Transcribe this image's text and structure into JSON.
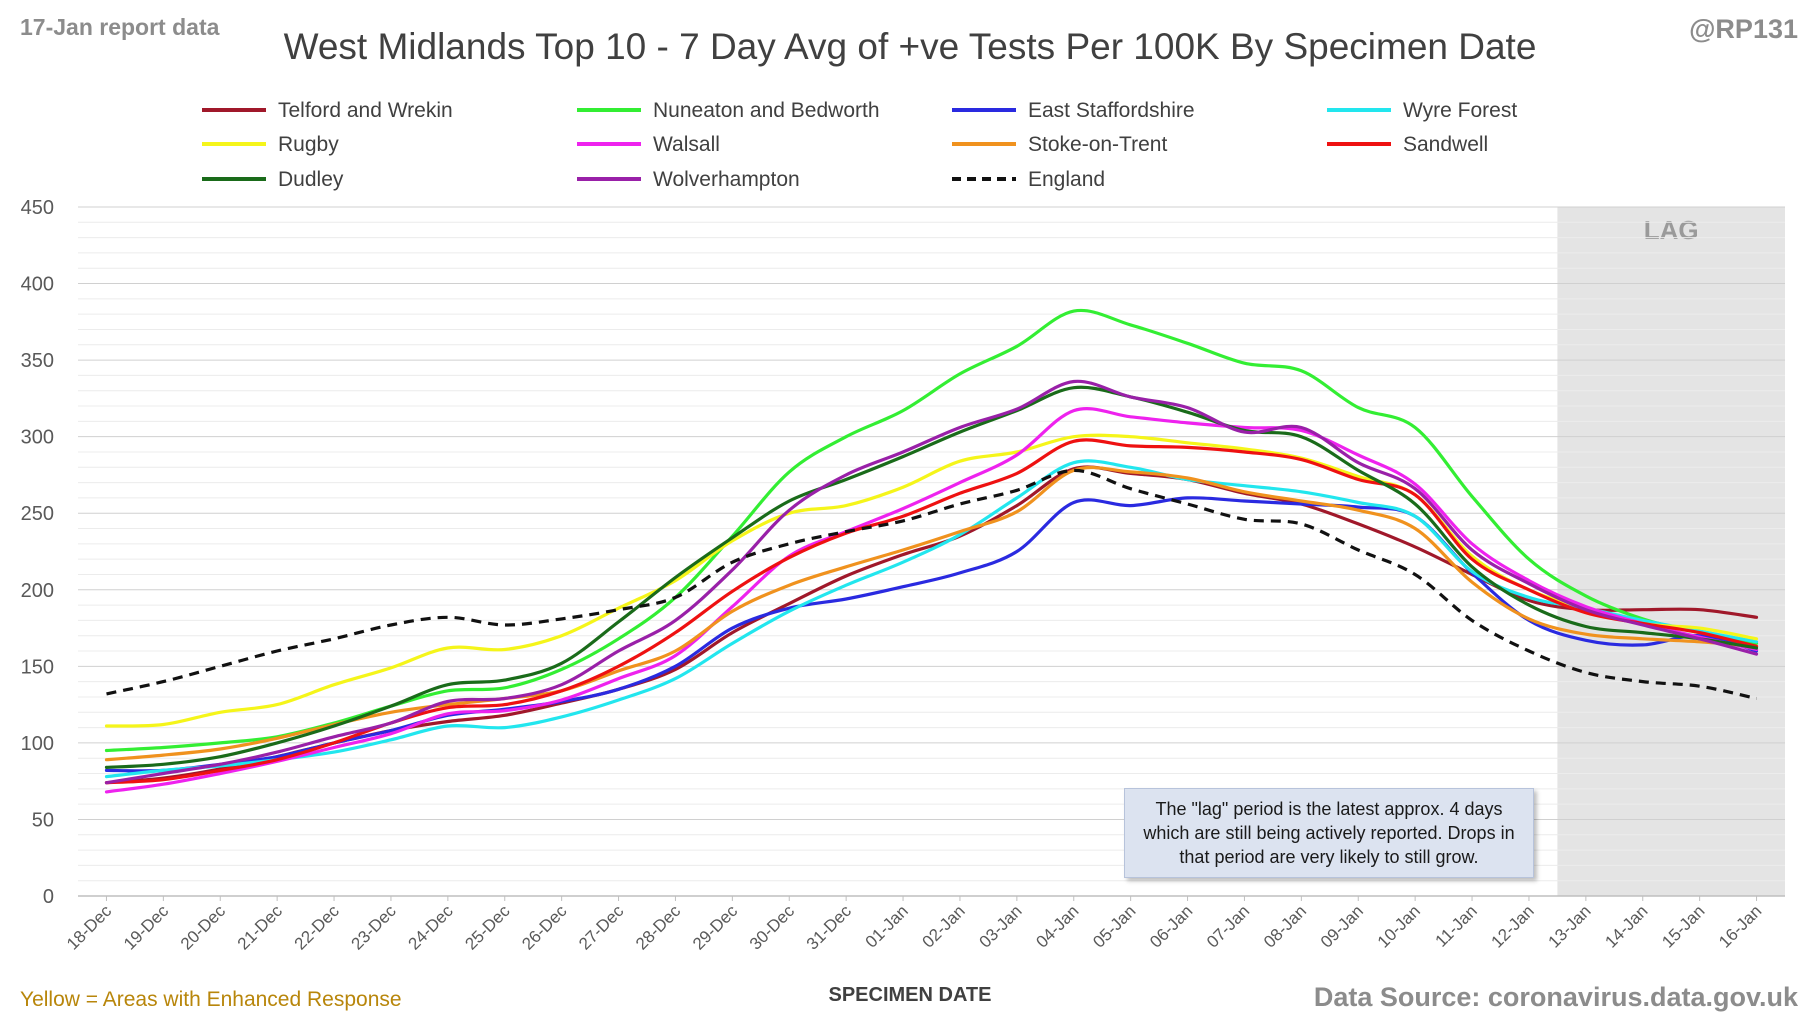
{
  "header": {
    "report_label": "17-Jan report data",
    "handle": "@RP131",
    "title": "West Midlands Top 10 - 7 Day Avg of +ve Tests Per 100K By Specimen Date"
  },
  "footer": {
    "note_left": "Yellow = Areas with Enhanced Response",
    "source": "Data Source: coronavirus.data.gov.uk"
  },
  "annotation": {
    "lag_label": "LAG",
    "lag_note": "The \"lag\" period is the latest approx. 4 days which are still being actively reported. Drops in that period are very likely to still grow."
  },
  "chart_data": {
    "type": "line",
    "title": "West Midlands Top 10 - 7 Day Avg of +ve Tests Per 100K By Specimen Date",
    "xlabel": "SPECIMEN DATE",
    "ylabel": "",
    "ylim": [
      0,
      450
    ],
    "yticks": [
      0,
      50,
      100,
      150,
      200,
      250,
      300,
      350,
      400,
      450
    ],
    "grid": true,
    "legend_position": "top",
    "lag_period": [
      "13-Jan",
      "16-Jan"
    ],
    "categories": [
      "18-Dec",
      "19-Dec",
      "20-Dec",
      "21-Dec",
      "22-Dec",
      "23-Dec",
      "24-Dec",
      "25-Dec",
      "26-Dec",
      "27-Dec",
      "28-Dec",
      "29-Dec",
      "30-Dec",
      "31-Dec",
      "01-Jan",
      "02-Jan",
      "03-Jan",
      "04-Jan",
      "05-Jan",
      "06-Jan",
      "07-Jan",
      "08-Jan",
      "09-Jan",
      "10-Jan",
      "11-Jan",
      "12-Jan",
      "13-Jan",
      "14-Jan",
      "15-Jan",
      "16-Jan"
    ],
    "series": [
      {
        "name": "Telford and Wrekin",
        "color": "#a0182a",
        "dash": false,
        "values": [
          74,
          77,
          83,
          91,
          100,
          108,
          114,
          118,
          126,
          135,
          148,
          172,
          191,
          209,
          223,
          235,
          255,
          279,
          276,
          272,
          263,
          256,
          243,
          228,
          210,
          193,
          187,
          187,
          187,
          182
        ]
      },
      {
        "name": "Nuneaton and Bedworth",
        "color": "#33ee33",
        "dash": false,
        "values": [
          95,
          97,
          100,
          104,
          113,
          124,
          134,
          136,
          148,
          168,
          195,
          235,
          277,
          300,
          317,
          341,
          359,
          382,
          373,
          361,
          348,
          343,
          319,
          306,
          261,
          220,
          196,
          181,
          172,
          165
        ]
      },
      {
        "name": "East Staffordshire",
        "color": "#2a2ae0",
        "dash": false,
        "values": [
          82,
          82,
          86,
          91,
          100,
          108,
          118,
          122,
          127,
          135,
          150,
          175,
          188,
          194,
          202,
          211,
          225,
          257,
          255,
          260,
          258,
          256,
          254,
          248,
          211,
          180,
          167,
          164,
          170,
          160
        ]
      },
      {
        "name": "Wyre Forest",
        "color": "#22e6ee",
        "dash": false,
        "values": [
          78,
          82,
          85,
          89,
          94,
          102,
          111,
          110,
          117,
          128,
          142,
          165,
          186,
          203,
          218,
          236,
          260,
          283,
          280,
          272,
          268,
          264,
          257,
          248,
          212,
          195,
          188,
          180,
          173,
          166
        ]
      },
      {
        "name": "Rugby",
        "color": "#f5f51a",
        "dash": false,
        "values": [
          111,
          112,
          120,
          125,
          138,
          149,
          162,
          161,
          170,
          188,
          206,
          232,
          250,
          255,
          267,
          284,
          290,
          300,
          300,
          296,
          292,
          286,
          274,
          262,
          222,
          200,
          188,
          178,
          175,
          168
        ]
      },
      {
        "name": "Walsall",
        "color": "#ee22ee",
        "dash": false,
        "values": [
          68,
          73,
          80,
          88,
          97,
          106,
          119,
          121,
          128,
          142,
          157,
          189,
          222,
          238,
          253,
          270,
          288,
          317,
          313,
          309,
          306,
          304,
          288,
          269,
          230,
          206,
          189,
          178,
          169,
          161
        ]
      },
      {
        "name": "Stoke-on-Trent",
        "color": "#f0921e",
        "dash": false,
        "values": [
          89,
          92,
          96,
          103,
          112,
          120,
          125,
          129,
          134,
          147,
          160,
          186,
          203,
          215,
          226,
          238,
          251,
          278,
          277,
          273,
          264,
          258,
          252,
          240,
          205,
          181,
          171,
          168,
          166,
          163
        ]
      },
      {
        "name": "Sandwell",
        "color": "#ee1111",
        "dash": false,
        "values": [
          74,
          76,
          82,
          89,
          100,
          113,
          123,
          125,
          134,
          150,
          172,
          199,
          221,
          237,
          248,
          263,
          276,
          297,
          294,
          293,
          290,
          285,
          272,
          262,
          220,
          200,
          185,
          178,
          172,
          163
        ]
      },
      {
        "name": "Dudley",
        "color": "#1a6b1a",
        "dash": false,
        "values": [
          84,
          86,
          91,
          100,
          111,
          124,
          138,
          141,
          152,
          179,
          208,
          234,
          258,
          272,
          287,
          303,
          317,
          332,
          326,
          316,
          304,
          300,
          278,
          256,
          215,
          190,
          176,
          172,
          168,
          162
        ]
      },
      {
        "name": "Wolverhampton",
        "color": "#9920a8",
        "dash": false,
        "values": [
          74,
          80,
          86,
          94,
          104,
          113,
          127,
          129,
          138,
          160,
          180,
          213,
          252,
          275,
          290,
          306,
          318,
          336,
          326,
          319,
          303,
          306,
          283,
          266,
          226,
          204,
          187,
          177,
          168,
          158
        ]
      },
      {
        "name": "England",
        "color": "#111111",
        "dash": true,
        "values": [
          132,
          140,
          150,
          160,
          168,
          177,
          182,
          177,
          181,
          187,
          195,
          218,
          230,
          238,
          245,
          256,
          265,
          278,
          266,
          256,
          246,
          243,
          226,
          210,
          180,
          160,
          146,
          140,
          137,
          129
        ]
      }
    ]
  }
}
